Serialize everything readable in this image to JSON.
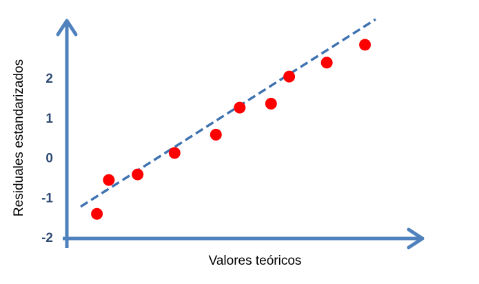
{
  "chart_data": {
    "type": "scatter",
    "x_label": "Valores teóricos",
    "y_label": "Residuales estandarizados",
    "x": [
      -0.94,
      -0.75,
      -0.29,
      0.3,
      0.96,
      1.34,
      1.84,
      2.13,
      2.73,
      3.34
    ],
    "values": [
      -1.38,
      -0.53,
      -0.39,
      0.15,
      0.61,
      1.29,
      1.39,
      2.07,
      2.42,
      2.87
    ],
    "color": "#ff0000",
    "fit_line": {
      "x": [
        -1.2,
        3.51
      ],
      "y": [
        -1.2,
        3.51
      ],
      "color": "#3f72b0"
    },
    "axis_color": "#4f81bd",
    "xlim": [
      -1.42,
      4.28
    ],
    "ylim": [
      -2,
      3.51
    ],
    "yticks": [
      -2,
      -1,
      0,
      1,
      2
    ],
    "grid": false
  }
}
